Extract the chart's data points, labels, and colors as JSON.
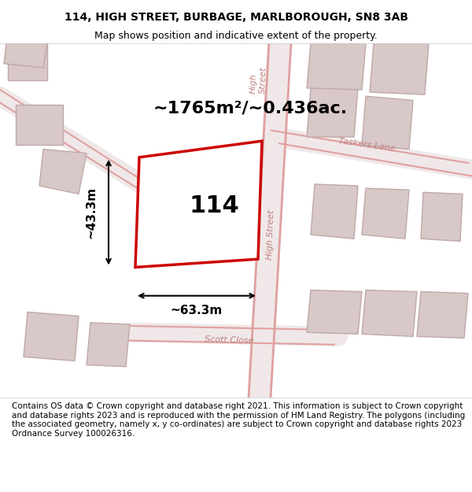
{
  "title_line1": "114, HIGH STREET, BURBAGE, MARLBOROUGH, SN8 3AB",
  "title_line2": "Map shows position and indicative extent of the property.",
  "area_text": "~1765m²/~0.436ac.",
  "property_number": "114",
  "dim_width": "~63.3m",
  "dim_height": "~43.3m",
  "street_label_high1": "High Street",
  "street_label_high2": "High Street",
  "street_label_taskers": "Taskers Lane",
  "street_label_scott": "Scott Close",
  "footer_text": "Contains OS data © Crown copyright and database right 2021. This information is subject to Crown copyright and database rights 2023 and is reproduced with the permission of HM Land Registry. The polygons (including the associated geometry, namely x, y co-ordinates) are subject to Crown copyright and database rights 2023 Ordnance Survey 100026316.",
  "bg_color": "#f5f0f0",
  "map_bg_color": "#ffffff",
  "road_color": "#e8b8b8",
  "building_color": "#d8c8c8",
  "property_outline_color": "#cc0000",
  "property_fill_color": "#ffffff",
  "dim_color": "#000000",
  "text_color": "#000000",
  "road_fill_color": "#f0e0e0",
  "title_fontsize": 10,
  "footer_fontsize": 7.5
}
